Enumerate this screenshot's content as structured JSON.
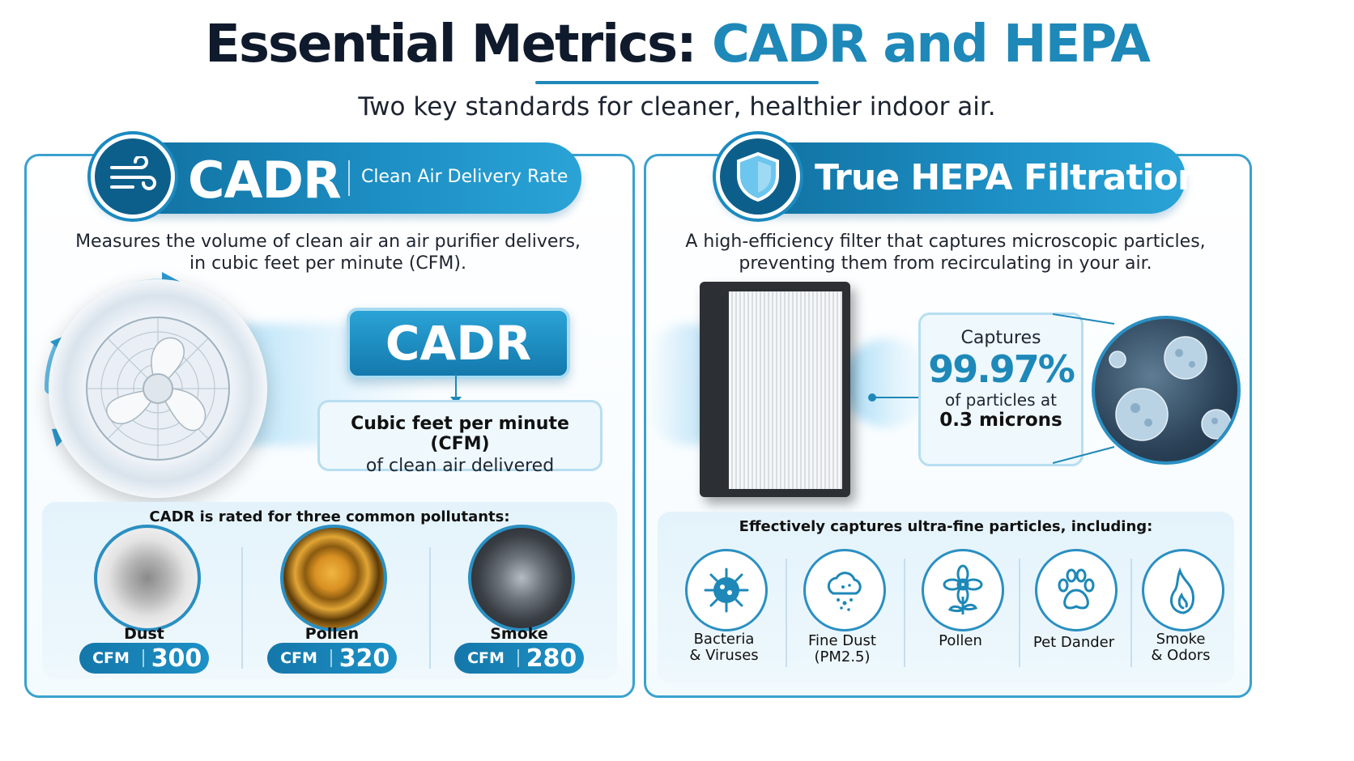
{
  "header": {
    "title_main": "Essential Metrics:",
    "title_accent": "CADR and HEPA",
    "subtitle": "Two key standards for cleaner, healthier indoor air."
  },
  "cadr": {
    "pill_title": "CADR",
    "pill_subtitle": "Clean Air Delivery Rate",
    "description_line1": "Measures the volume of clean air an air purifier delivers,",
    "description_line2": "in cubic feet per minute (CFM).",
    "big_label": "CADR",
    "cfm_line1": "Cubic feet per minute (CFM)",
    "cfm_line2": "of clean air delivered",
    "rated_heading": "CADR is rated for three common pollutants:",
    "pollutants": [
      {
        "label": "Dust",
        "unit": "CFM",
        "value": "300"
      },
      {
        "label": "Pollen",
        "unit": "CFM",
        "value": "320"
      },
      {
        "label": "Smoke",
        "unit": "CFM",
        "value": "280"
      }
    ]
  },
  "hepa": {
    "pill_title": "True HEPA Filtration",
    "description_line1": "A high-efficiency filter that captures microscopic particles,",
    "description_line2": "preventing them from recirculating in your air.",
    "captures_label": "Captures",
    "captures_value": "99.97%",
    "captures_line3": "of particles at",
    "captures_line4": "0.3 microns",
    "particles_heading": "Effectively captures ultra-fine particles, including:",
    "particles": [
      {
        "line1": "Bacteria",
        "line2": "& Viruses"
      },
      {
        "line1": "Fine Dust",
        "line2": "(PM2.5)"
      },
      {
        "line1": "Pollen",
        "line2": ""
      },
      {
        "line1": "Pet Dander",
        "line2": ""
      },
      {
        "line1": "Smoke",
        "line2": "& Odors"
      }
    ]
  },
  "colors": {
    "accent": "#1e88b8",
    "dark_blue": "#0f6c9b",
    "title_dark": "#0f1a2c"
  },
  "icons": [
    "wind-icon",
    "shield-icon",
    "fan-image",
    "dust-image",
    "pollen-image",
    "smoke-image",
    "hepa-filter-image",
    "virus-image",
    "bacteria-icon",
    "fine-dust-icon",
    "flower-icon",
    "paw-icon",
    "flame-icon"
  ]
}
